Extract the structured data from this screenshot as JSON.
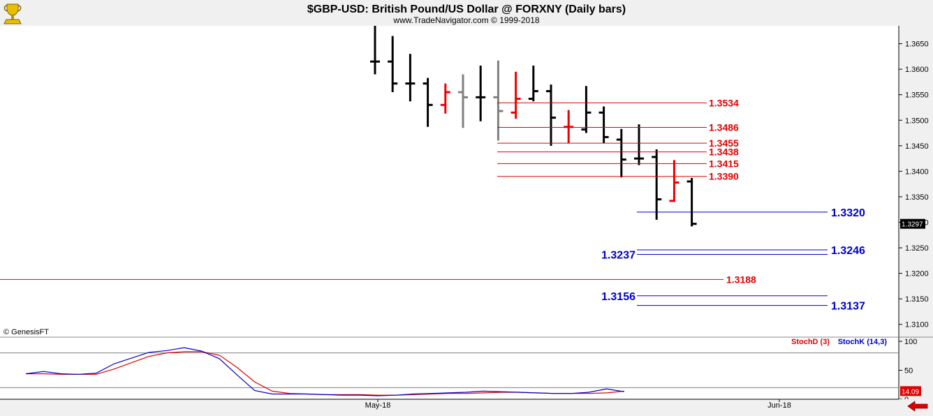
{
  "header": {
    "title": "$GBP-USD:  British Pound/US Dollar @ FORXNY  (Daily bars)",
    "subtitle": "www.TradeNavigator.com © 1999-2018"
  },
  "watermark": "© GenesisFT",
  "last_price": "1.3297",
  "colors": {
    "up_bar": "#000000",
    "down_bar": "#ee0000",
    "neutral_bar": "#808080",
    "resistance": "#e00000",
    "support": "#0000cc",
    "stochD": "#e00000",
    "stochK": "#0000cc",
    "last_price_bg": "#000000",
    "stoch_value_bg": "#e00000"
  },
  "chart_data": [
    {
      "type": "ohlc",
      "title": "$GBP-USD:  British Pound/US Dollar @ FORXNY  (Daily bars)",
      "x_labels": [
        "May-18",
        "Jun-18"
      ],
      "ylim": [
        1.3075,
        1.3685
      ],
      "y_ticks": [
        "1.3650",
        "1.3600",
        "1.3550",
        "1.3500",
        "1.3450",
        "1.3400",
        "1.3350",
        "1.3300",
        "1.3250",
        "1.3200",
        "1.3150",
        "1.3100"
      ],
      "bars": [
        {
          "o": 1.3615,
          "h": 1.3685,
          "l": 1.359,
          "c": 1.3615,
          "color": "black"
        },
        {
          "o": 1.3615,
          "h": 1.3665,
          "l": 1.3555,
          "c": 1.3572,
          "color": "black"
        },
        {
          "o": 1.3572,
          "h": 1.363,
          "l": 1.3537,
          "c": 1.3572,
          "color": "black"
        },
        {
          "o": 1.3572,
          "h": 1.3583,
          "l": 1.3487,
          "c": 1.353,
          "color": "black"
        },
        {
          "o": 1.353,
          "h": 1.3572,
          "l": 1.3513,
          "c": 1.3555,
          "color": "red"
        },
        {
          "o": 1.3555,
          "h": 1.359,
          "l": 1.3485,
          "c": 1.3545,
          "color": "gray"
        },
        {
          "o": 1.3545,
          "h": 1.3607,
          "l": 1.3498,
          "c": 1.3545,
          "color": "black"
        },
        {
          "o": 1.3545,
          "h": 1.3617,
          "l": 1.346,
          "c": 1.3518,
          "color": "gray"
        },
        {
          "o": 1.3515,
          "h": 1.3595,
          "l": 1.3503,
          "c": 1.3542,
          "color": "red"
        },
        {
          "o": 1.3542,
          "h": 1.3607,
          "l": 1.3537,
          "c": 1.3557,
          "color": "black"
        },
        {
          "o": 1.3557,
          "h": 1.357,
          "l": 1.345,
          "c": 1.3505,
          "color": "black"
        },
        {
          "o": 1.3487,
          "h": 1.352,
          "l": 1.3455,
          "c": 1.3487,
          "color": "red"
        },
        {
          "o": 1.3482,
          "h": 1.3567,
          "l": 1.3475,
          "c": 1.3515,
          "color": "black"
        },
        {
          "o": 1.3515,
          "h": 1.3527,
          "l": 1.3455,
          "c": 1.3467,
          "color": "black"
        },
        {
          "o": 1.3462,
          "h": 1.3483,
          "l": 1.3388,
          "c": 1.3423,
          "color": "black"
        },
        {
          "o": 1.3425,
          "h": 1.3492,
          "l": 1.3412,
          "c": 1.3425,
          "color": "black"
        },
        {
          "o": 1.3428,
          "h": 1.3443,
          "l": 1.3305,
          "c": 1.3345,
          "color": "black"
        },
        {
          "o": 1.3342,
          "h": 1.3422,
          "l": 1.334,
          "c": 1.3378,
          "color": "red"
        },
        {
          "o": 1.338,
          "h": 1.3387,
          "l": 1.3292,
          "c": 1.3297,
          "color": "black"
        }
      ],
      "levels": [
        {
          "label": "1.3534",
          "value": 1.3534,
          "color": "red",
          "label_side": "right"
        },
        {
          "label": "1.3486",
          "value": 1.3486,
          "color": "red",
          "label_side": "right"
        },
        {
          "label": "1.3455",
          "value": 1.3455,
          "color": "red",
          "label_side": "right"
        },
        {
          "label": "1.3438",
          "value": 1.3438,
          "color": "red",
          "label_side": "right"
        },
        {
          "label": "1.3415",
          "value": 1.3415,
          "color": "red",
          "label_side": "right"
        },
        {
          "label": "1.3390",
          "value": 1.339,
          "color": "red",
          "label_side": "right"
        },
        {
          "label": "1.3320",
          "value": 1.332,
          "color": "blue",
          "label_side": "right"
        },
        {
          "label": "1.3246",
          "value": 1.3246,
          "color": "blue",
          "label_side": "right"
        },
        {
          "label": "1.3237",
          "value": 1.3237,
          "color": "blue",
          "label_side": "left"
        },
        {
          "label": "1.3188",
          "value": 1.3188,
          "color": "red",
          "label_side": "right"
        },
        {
          "label": "1.3156",
          "value": 1.3156,
          "color": "blue",
          "label_side": "left"
        },
        {
          "label": "1.3137",
          "value": 1.3137,
          "color": "blue",
          "label_side": "right"
        }
      ]
    },
    {
      "type": "line",
      "ylim": [
        0,
        100
      ],
      "y_ticks": [
        "100",
        "50",
        "0"
      ],
      "reference_lines": [
        80,
        20
      ],
      "legend": [
        "StochD (3)",
        "StochK (14,3)"
      ],
      "current_value": "14.09",
      "series": [
        {
          "name": "StochD (3)",
          "color": "red",
          "values": [
            44,
            44,
            43,
            43,
            43,
            52,
            63,
            74,
            80,
            82,
            82,
            76,
            55,
            30,
            14,
            10,
            9,
            8,
            8,
            8,
            7,
            7,
            8,
            9,
            10,
            10,
            11,
            12,
            12,
            11,
            10,
            10,
            10,
            11,
            14
          ]
        },
        {
          "name": "StochK (14,3)",
          "color": "blue",
          "values": [
            44,
            48,
            44,
            43,
            45,
            61,
            71,
            81,
            84,
            89,
            83,
            70,
            42,
            15,
            9,
            9,
            9,
            8,
            7,
            7,
            6,
            7,
            9,
            10,
            11,
            12,
            14,
            13,
            12,
            11,
            10,
            10,
            12,
            18,
            13
          ]
        }
      ]
    }
  ]
}
